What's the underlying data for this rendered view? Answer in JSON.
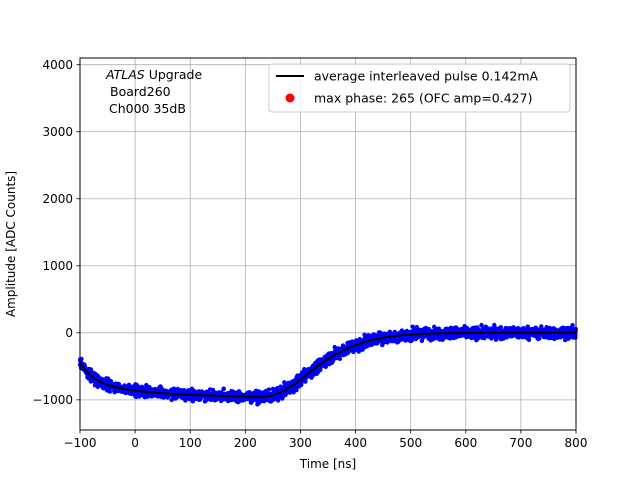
{
  "chart_data": {
    "type": "scatter",
    "title": "",
    "xlabel": "Time [ns]",
    "ylabel": "Amplitude [ADC Counts]",
    "xlim": [
      -100,
      800
    ],
    "ylim": [
      -1450,
      4100
    ],
    "xticks": [
      -100,
      0,
      100,
      200,
      300,
      400,
      500,
      600,
      700,
      800
    ],
    "yticks": [
      -1000,
      0,
      1000,
      2000,
      3000,
      4000
    ],
    "grid": true,
    "legend_position": "top-right",
    "annotation": {
      "line1_italic": "ATLAS",
      "line1_rest": " Upgrade",
      "line2": "Board260",
      "line3": "Ch000 35dB"
    },
    "series": [
      {
        "name": "average interleaved pulse 0.142mA",
        "kind": "line",
        "color": "#000000",
        "x": [
          -100,
          -90,
          -80,
          -70,
          -60,
          -50,
          -40,
          -30,
          -20,
          -10,
          0,
          20,
          40,
          60,
          80,
          100,
          120,
          140,
          160,
          180,
          200,
          210,
          220,
          230,
          240,
          250,
          260,
          270,
          280,
          290,
          300,
          310,
          320,
          330,
          340,
          350,
          360,
          370,
          380,
          390,
          400,
          420,
          440,
          460,
          480,
          500,
          520,
          540,
          560,
          580,
          600,
          620,
          640,
          660,
          680,
          700,
          720,
          740,
          760,
          780,
          800
        ],
        "y": [
          -450,
          -560,
          -640,
          -700,
          -745,
          -775,
          -800,
          -820,
          -838,
          -852,
          -862,
          -880,
          -895,
          -907,
          -916,
          -924,
          -931,
          -937,
          -942,
          -946,
          -950,
          -952,
          -955,
          -957,
          -950,
          -935,
          -905,
          -865,
          -815,
          -760,
          -700,
          -635,
          -570,
          -505,
          -445,
          -390,
          -340,
          -295,
          -255,
          -220,
          -185,
          -130,
          -90,
          -60,
          -40,
          -25,
          -16,
          -10,
          -6,
          -4,
          -3,
          -2,
          -1,
          0,
          0,
          0,
          0,
          0,
          0,
          0,
          0
        ]
      },
      {
        "name": "",
        "kind": "scatter",
        "color": "#0000ff",
        "note": "interleaved sample points scattered around the average pulse with spread of about 50-100 ADC counts"
      },
      {
        "name": "max phase: 265 (OFC amp=0.427)",
        "kind": "marker",
        "color": "#ff0000",
        "x": [],
        "y": []
      }
    ]
  }
}
